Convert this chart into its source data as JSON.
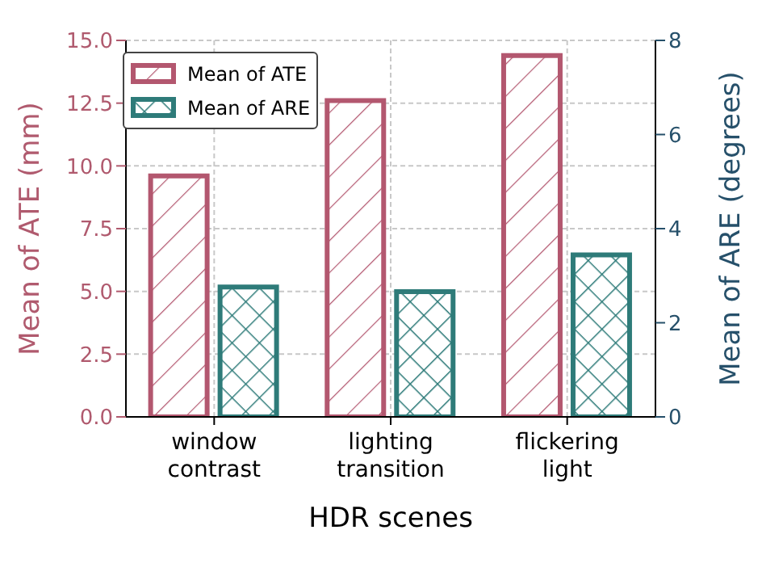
{
  "chart_data": {
    "type": "bar",
    "xlabel": "HDR scenes",
    "ylabel": "Mean of ATE (mm)",
    "y2label": "Mean of ARE (degrees)",
    "categories": [
      "window contrast",
      "lighting transition",
      "flickering light"
    ],
    "series": [
      {
        "name": "Mean of ATE",
        "color": "#b3576f",
        "values": [
          9.6,
          12.6,
          14.4
        ]
      },
      {
        "name": "Mean of ARE",
        "color": "#2e7b79",
        "values": [
          2.76,
          2.66,
          3.44
        ],
        "axis": "y2"
      }
    ],
    "ylim": [
      0,
      15
    ],
    "yticks": [
      {
        "value": 0,
        "label": "0.0"
      },
      {
        "value": 2.5,
        "label": "2.5"
      },
      {
        "value": 5,
        "label": "5.0"
      },
      {
        "value": 7.5,
        "label": "7.5"
      },
      {
        "value": 10,
        "label": "10.0"
      },
      {
        "value": 12.5,
        "label": "12.5"
      },
      {
        "value": 15,
        "label": "15.0"
      }
    ],
    "y2lim": [
      0,
      8
    ],
    "y2ticks": [
      0,
      2,
      4,
      6,
      8
    ],
    "grid": true,
    "legend": "top left"
  }
}
